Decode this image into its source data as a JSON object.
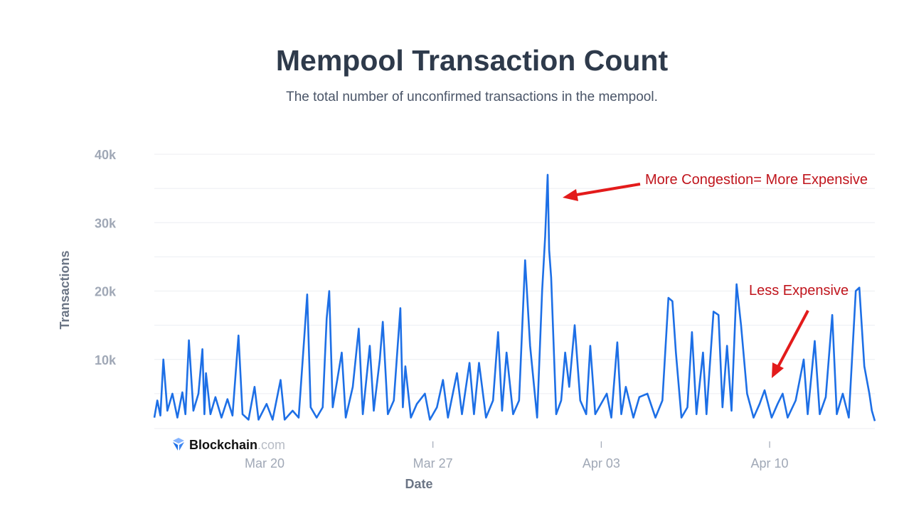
{
  "title": "Mempool Transaction Count",
  "subtitle": "The total number of unconfirmed transactions in the mempool.",
  "logo": {
    "brand": "Blockchain",
    "suffix": ".com"
  },
  "colors": {
    "line": "#1d6fe6",
    "annotation": "#c0151d",
    "grid": "#eceef2"
  },
  "annotations": [
    {
      "text": "More Congestion= More Expensive",
      "points_to": "Mar 31 18:30"
    },
    {
      "text": "Less Expensive",
      "points_to": "Apr 10 00:00"
    }
  ],
  "chart_data": {
    "type": "line",
    "title": "Mempool Transaction Count",
    "xlabel": "Date",
    "ylabel": "Transactions",
    "ylim": [
      0,
      40000
    ],
    "xlim": [
      "Mar 15 10:00",
      "Apr 14 09:00"
    ],
    "grid": true,
    "yticks": [
      {
        "v": 10000,
        "label": "10k"
      },
      {
        "v": 20000,
        "label": "20k"
      },
      {
        "v": 30000,
        "label": "30k"
      },
      {
        "v": 40000,
        "label": "40k"
      }
    ],
    "xticks": [
      {
        "t": "Mar 20 00:00",
        "label": "Mar 20"
      },
      {
        "t": "Mar 27 00:00",
        "label": "Mar 27"
      },
      {
        "t": "Apr 03 00:00",
        "label": "Apr 03"
      },
      {
        "t": "Apr 10 00:00",
        "label": "Apr 10"
      }
    ],
    "series": [
      {
        "points": [
          [
            "Mar 15 10:00",
            1500
          ],
          [
            "Mar 15 13:00",
            4000
          ],
          [
            "Mar 15 16:00",
            1800
          ],
          [
            "Mar 15 19:00",
            10000
          ],
          [
            "Mar 15 23:00",
            2500
          ],
          [
            "Mar 16 04:00",
            5000
          ],
          [
            "Mar 16 09:00",
            1500
          ],
          [
            "Mar 16 14:00",
            5200
          ],
          [
            "Mar 16 17:00",
            2000
          ],
          [
            "Mar 16 20:30",
            12800
          ],
          [
            "Mar 17 01:00",
            2500
          ],
          [
            "Mar 17 06:00",
            5000
          ],
          [
            "Mar 17 10:00",
            11500
          ],
          [
            "Mar 17 12:00",
            2000
          ],
          [
            "Mar 17 13:30",
            8000
          ],
          [
            "Mar 17 18:00",
            2000
          ],
          [
            "Mar 17 23:00",
            4500
          ],
          [
            "Mar 18 05:00",
            1500
          ],
          [
            "Mar 18 11:00",
            4200
          ],
          [
            "Mar 18 16:00",
            1800
          ],
          [
            "Mar 18 22:00",
            13500
          ],
          [
            "Mar 19 02:00",
            2000
          ],
          [
            "Mar 19 08:00",
            1200
          ],
          [
            "Mar 19 14:00",
            6000
          ],
          [
            "Mar 19 18:00",
            1200
          ],
          [
            "Mar 20 02:00",
            3500
          ],
          [
            "Mar 20 08:00",
            1200
          ],
          [
            "Mar 20 16:00",
            7000
          ],
          [
            "Mar 20 20:00",
            1200
          ],
          [
            "Mar 21 04:00",
            2500
          ],
          [
            "Mar 21 10:00",
            1500
          ],
          [
            "Mar 21 16:00",
            14000
          ],
          [
            "Mar 21 18:30",
            19500
          ],
          [
            "Mar 21 22:00",
            3000
          ],
          [
            "Mar 22 04:00",
            1500
          ],
          [
            "Mar 22 10:00",
            3000
          ],
          [
            "Mar 22 14:00",
            16000
          ],
          [
            "Mar 22 16:30",
            20000
          ],
          [
            "Mar 22 20:00",
            3000
          ],
          [
            "Mar 23 05:00",
            11000
          ],
          [
            "Mar 23 09:00",
            1500
          ],
          [
            "Mar 23 16:00",
            6000
          ],
          [
            "Mar 23 22:00",
            14500
          ],
          [
            "Mar 24 02:00",
            2000
          ],
          [
            "Mar 24 09:00",
            12000
          ],
          [
            "Mar 24 13:00",
            2500
          ],
          [
            "Mar 24 19:00",
            10000
          ],
          [
            "Mar 24 22:00",
            15500
          ],
          [
            "Mar 25 03:00",
            2000
          ],
          [
            "Mar 25 09:00",
            4000
          ],
          [
            "Mar 25 15:30",
            17500
          ],
          [
            "Mar 25 18:00",
            3000
          ],
          [
            "Mar 25 20:30",
            9000
          ],
          [
            "Mar 26 02:00",
            1500
          ],
          [
            "Mar 26 08:00",
            3500
          ],
          [
            "Mar 26 16:00",
            5000
          ],
          [
            "Mar 26 21:00",
            1200
          ],
          [
            "Mar 27 04:00",
            3000
          ],
          [
            "Mar 27 10:00",
            7000
          ],
          [
            "Mar 27 15:00",
            1500
          ],
          [
            "Mar 28 00:00",
            8000
          ],
          [
            "Mar 28 05:00",
            2000
          ],
          [
            "Mar 28 12:30",
            9500
          ],
          [
            "Mar 28 17:00",
            2000
          ],
          [
            "Mar 28 22:00",
            9500
          ],
          [
            "Mar 29 05:00",
            1500
          ],
          [
            "Mar 29 12:00",
            4000
          ],
          [
            "Mar 29 17:00",
            14000
          ],
          [
            "Mar 29 21:00",
            2500
          ],
          [
            "Mar 30 01:30",
            11000
          ],
          [
            "Mar 30 08:00",
            2000
          ],
          [
            "Mar 30 14:00",
            4000
          ],
          [
            "Mar 30 20:00",
            24500
          ],
          [
            "Mar 31 01:00",
            12000
          ],
          [
            "Mar 31 08:00",
            1500
          ],
          [
            "Mar 31 13:00",
            20000
          ],
          [
            "Mar 31 16:00",
            28000
          ],
          [
            "Mar 31 18:30",
            37000
          ],
          [
            "Mar 31 20:00",
            26000
          ],
          [
            "Mar 31 22:00",
            22000
          ],
          [
            "Apr 01 03:00",
            2000
          ],
          [
            "Apr 01 08:00",
            4000
          ],
          [
            "Apr 01 12:00",
            11000
          ],
          [
            "Apr 01 16:00",
            6000
          ],
          [
            "Apr 01 21:30",
            15000
          ],
          [
            "Apr 02 03:00",
            4000
          ],
          [
            "Apr 02 09:00",
            2000
          ],
          [
            "Apr 02 13:00",
            12000
          ],
          [
            "Apr 02 18:00",
            2000
          ],
          [
            "Apr 03 05:30",
            5000
          ],
          [
            "Apr 03 10:00",
            1500
          ],
          [
            "Apr 03 16:00",
            12500
          ],
          [
            "Apr 03 20:00",
            2000
          ],
          [
            "Apr 04 00:30",
            6000
          ],
          [
            "Apr 04 08:00",
            1500
          ],
          [
            "Apr 04 14:00",
            4500
          ],
          [
            "Apr 04 22:00",
            5000
          ],
          [
            "Apr 05 06:00",
            1500
          ],
          [
            "Apr 05 13:00",
            4000
          ],
          [
            "Apr 05 19:00",
            19000
          ],
          [
            "Apr 05 23:00",
            18500
          ],
          [
            "Apr 06 02:30",
            11000
          ],
          [
            "Apr 06 08:00",
            1500
          ],
          [
            "Apr 06 14:00",
            3000
          ],
          [
            "Apr 06 18:30",
            14000
          ],
          [
            "Apr 06 23:00",
            2000
          ],
          [
            "Apr 07 05:30",
            11000
          ],
          [
            "Apr 07 09:00",
            2000
          ],
          [
            "Apr 07 16:00",
            17000
          ],
          [
            "Apr 07 21:00",
            16500
          ],
          [
            "Apr 08 01:00",
            3000
          ],
          [
            "Apr 08 05:30",
            12000
          ],
          [
            "Apr 08 10:00",
            2500
          ],
          [
            "Apr 08 15:00",
            21000
          ],
          [
            "Apr 08 19:30",
            15000
          ],
          [
            "Apr 09 01:30",
            5000
          ],
          [
            "Apr 09 08:00",
            1500
          ],
          [
            "Apr 09 14:00",
            3500
          ],
          [
            "Apr 09 19:00",
            5500
          ],
          [
            "Apr 10 02:00",
            1500
          ],
          [
            "Apr 10 08:00",
            3500
          ],
          [
            "Apr 10 13:00",
            5000
          ],
          [
            "Apr 10 18:00",
            1500
          ],
          [
            "Apr 11 02:00",
            4000
          ],
          [
            "Apr 11 10:00",
            10000
          ],
          [
            "Apr 11 14:00",
            2000
          ],
          [
            "Apr 11 21:00",
            12700
          ],
          [
            "Apr 12 02:00",
            2000
          ],
          [
            "Apr 12 08:00",
            4500
          ],
          [
            "Apr 12 14:30",
            16500
          ],
          [
            "Apr 12 19:00",
            2000
          ],
          [
            "Apr 13 01:00",
            5000
          ],
          [
            "Apr 13 07:00",
            1500
          ],
          [
            "Apr 13 14:00",
            20000
          ],
          [
            "Apr 13 17:30",
            20500
          ],
          [
            "Apr 13 22:30",
            9000
          ],
          [
            "Apr 14 03:30",
            5000
          ],
          [
            "Apr 14 06:00",
            2500
          ],
          [
            "Apr 14 09:00",
            1000
          ]
        ]
      }
    ]
  }
}
